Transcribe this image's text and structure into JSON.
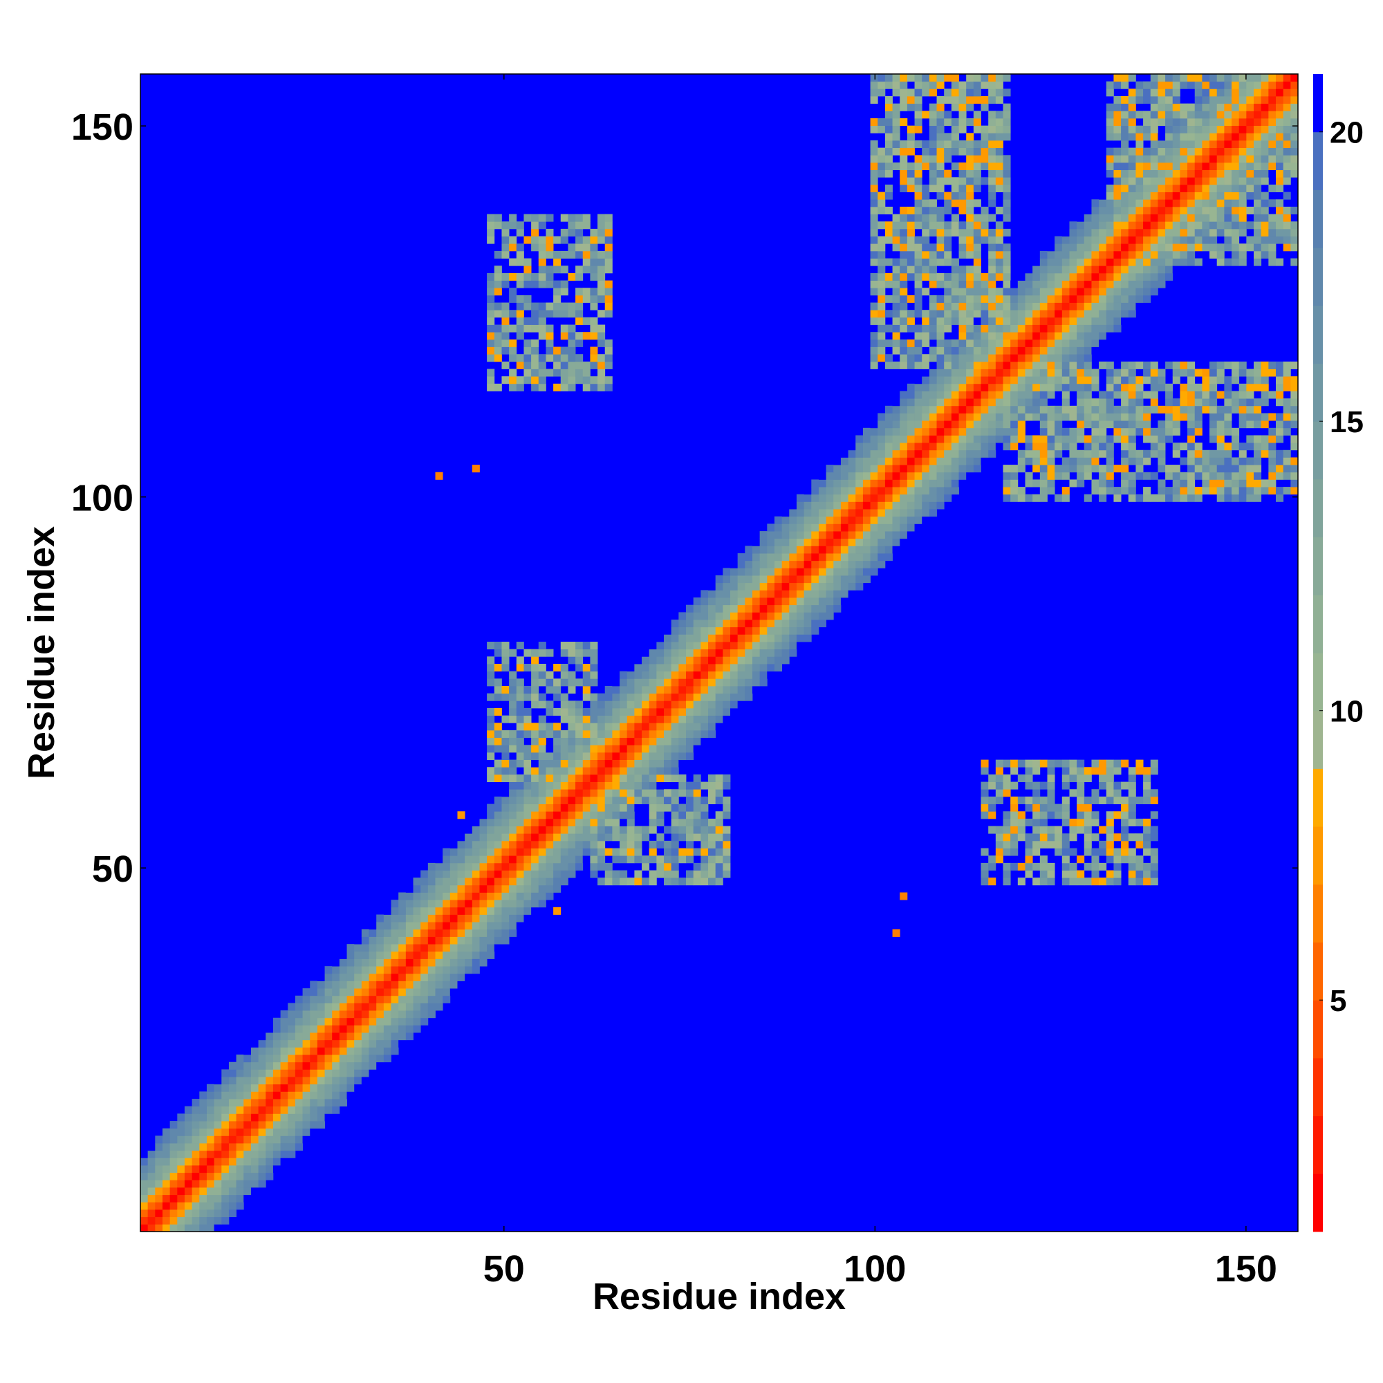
{
  "chart_data": {
    "type": "heatmap",
    "title": "",
    "xlabel": "Residue index",
    "ylabel": "Residue index",
    "n_residues": 157,
    "xlim": [
      1,
      157
    ],
    "ylim": [
      1,
      157
    ],
    "x_ticks": [
      50,
      100,
      150
    ],
    "y_ticks": [
      50,
      100,
      150
    ],
    "colorbar": {
      "ticks": [
        5,
        10,
        15,
        20
      ],
      "range": [
        1,
        21
      ],
      "levels": 20,
      "colors": [
        "#ff0000",
        "#ff1a00",
        "#ff3300",
        "#ff4d00",
        "#ff6600",
        "#ff8000",
        "#ff9900",
        "#ffaa00",
        "#9fb590",
        "#98b592",
        "#90b095",
        "#88aa98",
        "#80a49b",
        "#789ea0",
        "#7098a4",
        "#6890a8",
        "#6088ac",
        "#5880b0",
        "#4a70c0",
        "#0000ff"
      ]
    },
    "background_value": 21,
    "diagonal_band": {
      "core_width": 3,
      "band_width": 10
    },
    "contact_regions": [
      {
        "name": "helix-pair-A",
        "x_range": [
          48,
          64
        ],
        "y_range": [
          115,
          138
        ],
        "density": 0.7,
        "min_value": 7
      },
      {
        "name": "helix-pair-A-mirror",
        "x_range": [
          115,
          138
        ],
        "y_range": [
          48,
          64
        ],
        "density": 0.7,
        "min_value": 7
      },
      {
        "name": "local-block-1",
        "x_range": [
          48,
          62
        ],
        "y_range": [
          62,
          80
        ],
        "density": 0.75,
        "min_value": 8
      },
      {
        "name": "local-block-1-mirror",
        "x_range": [
          62,
          80
        ],
        "y_range": [
          48,
          62
        ],
        "density": 0.75,
        "min_value": 8
      },
      {
        "name": "c-terminal-block-1",
        "x_range": [
          100,
          118
        ],
        "y_range": [
          118,
          157
        ],
        "density": 0.8,
        "min_value": 7
      },
      {
        "name": "c-terminal-block-1-mirror",
        "x_range": [
          118,
          157
        ],
        "y_range": [
          100,
          118
        ],
        "density": 0.8,
        "min_value": 7
      },
      {
        "name": "c-terminal-block-2",
        "x_range": [
          132,
          157
        ],
        "y_range": [
          132,
          157
        ],
        "density": 0.8,
        "min_value": 7
      }
    ],
    "isolated_contacts": [
      {
        "x": 41,
        "y": 103,
        "value": 6
      },
      {
        "x": 46,
        "y": 104,
        "value": 6
      },
      {
        "x": 103,
        "y": 41,
        "value": 6
      },
      {
        "x": 104,
        "y": 46,
        "value": 6
      },
      {
        "x": 44,
        "y": 57,
        "value": 7
      },
      {
        "x": 57,
        "y": 44,
        "value": 7
      }
    ]
  }
}
